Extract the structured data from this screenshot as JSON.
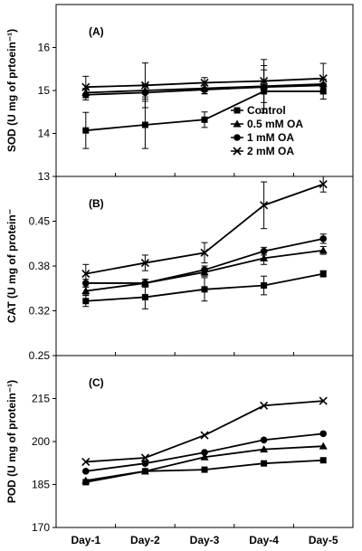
{
  "chart_data": [
    {
      "type": "line",
      "panel_label": "(A)",
      "ylabel": "SOD (U mg of prtoein⁻¹)",
      "ylim": [
        13,
        17
      ],
      "yticks": [
        "13",
        "14",
        "15",
        "16"
      ],
      "categories": [
        "Day-1",
        "Day-2",
        "Day-3",
        "Day-4",
        "Day-5"
      ],
      "series": [
        {
          "name": "Control",
          "marker": "square",
          "values": [
            14.07,
            14.2,
            14.32,
            14.98,
            14.98
          ],
          "errors": [
            0.42,
            0.55,
            0.18,
            0.5,
            0.18
          ]
        },
        {
          "name": "0.5 mM OA",
          "marker": "triangle",
          "values": [
            14.95,
            15.0,
            15.05,
            15.1,
            15.15
          ],
          "errors": [
            0.1,
            0.15,
            0.12,
            0.1,
            0.1
          ]
        },
        {
          "name": "1 mM OA",
          "marker": "circle",
          "values": [
            14.9,
            14.95,
            15.02,
            15.08,
            15.12
          ],
          "errors": [
            0.12,
            0.15,
            0.1,
            0.5,
            0.15
          ]
        },
        {
          "name": "2 mM OA",
          "marker": "cross",
          "values": [
            15.08,
            15.12,
            15.18,
            15.22,
            15.28
          ],
          "errors": [
            0.25,
            0.52,
            0.12,
            0.5,
            0.35
          ]
        }
      ],
      "legend": {
        "entries": [
          "Control",
          "0.5 mM OA",
          "1 mM OA",
          "2 mM OA"
        ],
        "placement": "bottom-right"
      }
    },
    {
      "type": "line",
      "panel_label": "(B)",
      "ylabel": "CAT (U mg of protein⁻",
      "ylim": [
        0.25,
        0.48
      ],
      "yticks": [
        "0.25",
        "0.32",
        "0.38",
        "0.45"
      ],
      "categories": [
        "Day-1",
        "Day-2",
        "Day-3",
        "Day-4",
        "Day-5"
      ],
      "series": [
        {
          "name": "Control",
          "marker": "square",
          "values": [
            0.32,
            0.325,
            0.335,
            0.34,
            0.355
          ],
          "errors": [
            0.007,
            0.015,
            0.015,
            0.012,
            0.004
          ]
        },
        {
          "name": "0.5 mM OA",
          "marker": "triangle",
          "values": [
            0.333,
            0.343,
            0.357,
            0.375,
            0.385
          ],
          "errors": [
            0.005,
            0.005,
            0.005,
            0.008,
            0.005
          ]
        },
        {
          "name": "1 mM OA",
          "marker": "circle",
          "values": [
            0.343,
            0.343,
            0.36,
            0.384,
            0.4
          ],
          "errors": [
            0.005,
            0.005,
            0.005,
            0.005,
            0.006
          ]
        },
        {
          "name": "2 mM OA",
          "marker": "cross",
          "values": [
            0.355,
            0.369,
            0.382,
            0.443,
            0.47
          ],
          "errors": [
            0.012,
            0.01,
            0.013,
            0.03,
            0.01
          ]
        }
      ]
    },
    {
      "type": "line",
      "panel_label": "(C)",
      "ylabel": "POD (U mg of protein⁻¹)",
      "ylim": [
        170,
        225
      ],
      "yticks": [
        "170",
        "185",
        "200",
        "215"
      ],
      "categories": [
        "Day-1",
        "Day-2",
        "Day-3",
        "Day-4",
        "Day-5"
      ],
      "series": [
        {
          "name": "Control",
          "marker": "square",
          "values": [
            184.5,
            188.0,
            188.5,
            190.5,
            191.5
          ]
        },
        {
          "name": "0.5 mM OA",
          "marker": "triangle",
          "values": [
            185.0,
            188.0,
            192.5,
            195.0,
            196.0
          ]
        },
        {
          "name": "1 mM OA",
          "marker": "circle",
          "values": [
            188.0,
            190.5,
            194.0,
            198.0,
            200.0
          ]
        },
        {
          "name": "2 mM OA",
          "marker": "cross",
          "values": [
            191.0,
            192.3,
            199.5,
            209.0,
            210.5
          ]
        }
      ]
    }
  ]
}
